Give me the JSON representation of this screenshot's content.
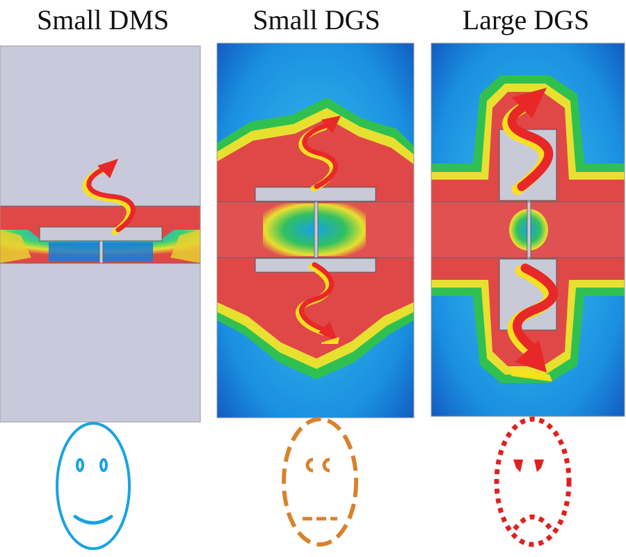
{
  "panels": [
    {
      "title": "Small DMS",
      "face_color": "#1aa3e0",
      "face_style": "solid"
    },
    {
      "title": "Small DGS",
      "face_color": "#d9822b",
      "face_style": "dashed"
    },
    {
      "title": "Large DGS",
      "face_color": "#e02020",
      "face_style": "dotted"
    }
  ],
  "colors": {
    "field_red": "#e04848",
    "field_orange": "#f0a030",
    "field_yellow": "#e8e030",
    "field_green": "#30c050",
    "field_cyan": "#20b0e8",
    "field_blue": "#1060c8",
    "metal_gray": "#c8cad8",
    "arrow_red": "#e82828",
    "arrow_yellow": "#f8e020"
  }
}
